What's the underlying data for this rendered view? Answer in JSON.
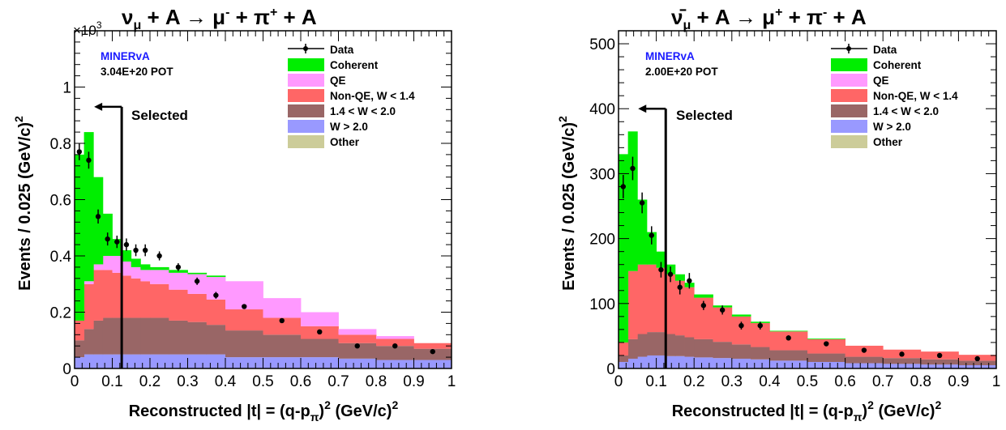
{
  "chart_data": [
    {
      "type": "bar",
      "title_prefix": "ν",
      "title_sub": "μ",
      "title_rest": " + A → μ",
      "title_mu_sup": "-",
      "title_pi": " + π",
      "title_pi_sup": "+",
      "title_end": " + A",
      "exponent_label": "×10",
      "exponent_sup": "3",
      "experiment": "MINERvA",
      "pot": "3.04E+20 POT",
      "ylabel": "Events / 0.025 (GeV/c)",
      "ylabel_sup": "2",
      "xlabel": "Reconstructed |t| = (q-p",
      "xlabel_sub": "π",
      "xlabel_end": ")",
      "xlabel_sup": "2",
      "xlabel_units": " (GeV/c)",
      "xlabel_units_sup": "2",
      "xlim": [
        0,
        1
      ],
      "ylim": [
        0,
        1.2
      ],
      "yticks": [
        "0",
        "0.2",
        "0.4",
        "0.6",
        "0.8",
        "1"
      ],
      "ytick_values": [
        0,
        0.2,
        0.4,
        0.6,
        0.8,
        1.0
      ],
      "xticks": [
        "0",
        "0.1",
        "0.2",
        "0.3",
        "0.4",
        "0.5",
        "0.6",
        "0.7",
        "0.8",
        "0.9",
        "1"
      ],
      "xtick_values": [
        0,
        0.1,
        0.2,
        0.3,
        0.4,
        0.5,
        0.6,
        0.7,
        0.8,
        0.9,
        1.0
      ],
      "cut_value": 0.125,
      "cut_label": "Selected",
      "bin_edges": [
        0,
        0.025,
        0.05,
        0.075,
        0.1,
        0.125,
        0.15,
        0.175,
        0.2,
        0.25,
        0.3,
        0.35,
        0.4,
        0.5,
        0.6,
        0.7,
        0.8,
        0.9,
        1.0
      ],
      "stack_order": [
        "W > 2.0",
        "1.4 < W < 2.0",
        "Non-QE, W < 1.4",
        "QE",
        "Coherent"
      ],
      "series": [
        {
          "name": "W > 2.0",
          "color": "#9999ff",
          "values": [
            0.04,
            0.05,
            0.05,
            0.05,
            0.05,
            0.05,
            0.05,
            0.05,
            0.05,
            0.05,
            0.05,
            0.05,
            0.04,
            0.04,
            0.04,
            0.035,
            0.03,
            0.03
          ]
        },
        {
          "name": "1.4 < W < 2.0",
          "color": "#996666",
          "values": [
            0.06,
            0.09,
            0.12,
            0.13,
            0.13,
            0.13,
            0.13,
            0.13,
            0.13,
            0.12,
            0.115,
            0.105,
            0.095,
            0.08,
            0.065,
            0.055,
            0.05,
            0.04
          ]
        },
        {
          "name": "Non-QE, W < 1.4",
          "color": "#ff6666",
          "values": [
            0.07,
            0.16,
            0.18,
            0.17,
            0.16,
            0.15,
            0.14,
            0.13,
            0.12,
            0.11,
            0.1,
            0.09,
            0.075,
            0.06,
            0.045,
            0.03,
            0.025,
            0.02
          ]
        },
        {
          "name": "QE",
          "color": "#ff99ff",
          "values": [
            0.0,
            0.01,
            0.02,
            0.05,
            0.06,
            0.05,
            0.04,
            0.04,
            0.05,
            0.06,
            0.07,
            0.08,
            0.1,
            0.07,
            0.05,
            0.02,
            0.01,
            0.0
          ]
        },
        {
          "name": "Coherent",
          "color": "#00ee00",
          "values": [
            0.59,
            0.53,
            0.31,
            0.15,
            0.06,
            0.04,
            0.03,
            0.02,
            0.01,
            0.01,
            0.005,
            0.005,
            0.0,
            0.0,
            0.0,
            0.0,
            0.0,
            0.0
          ]
        },
        {
          "name": "Other",
          "color": "#cccc99",
          "values": [
            0,
            0,
            0,
            0,
            0,
            0,
            0,
            0,
            0,
            0,
            0,
            0,
            0,
            0,
            0,
            0,
            0,
            0
          ]
        }
      ],
      "data": {
        "name": "Data",
        "x": [
          0.0125,
          0.0375,
          0.0625,
          0.0875,
          0.1125,
          0.1375,
          0.1625,
          0.1875,
          0.225,
          0.275,
          0.325,
          0.375,
          0.45,
          0.55,
          0.65,
          0.75,
          0.85,
          0.95
        ],
        "y": [
          0.77,
          0.74,
          0.54,
          0.46,
          0.45,
          0.44,
          0.42,
          0.42,
          0.4,
          0.36,
          0.31,
          0.26,
          0.22,
          0.17,
          0.13,
          0.08,
          0.08,
          0.06
        ],
        "err": [
          0.03,
          0.03,
          0.025,
          0.023,
          0.022,
          0.022,
          0.021,
          0.021,
          0.016,
          0.014,
          0.013,
          0.012,
          0.008,
          0.007,
          0.006,
          0.005,
          0.005,
          0.004
        ]
      },
      "legend": [
        "Data",
        "Coherent",
        "QE",
        "Non-QE, W < 1.4",
        "1.4 < W < 2.0",
        "W > 2.0",
        "Other"
      ]
    },
    {
      "type": "bar",
      "title_prefix": "ν̄",
      "title_sub": "μ",
      "title_rest": " + A → μ",
      "title_mu_sup": "+",
      "title_pi": " + π",
      "title_pi_sup": "-",
      "title_end": " + A",
      "experiment": "MINERvA",
      "pot": "2.00E+20 POT",
      "ylabel": "Events / 0.025 (GeV/c)",
      "ylabel_sup": "2",
      "xlabel": "Reconstructed |t| = (q-p",
      "xlabel_sub": "π",
      "xlabel_end": ")",
      "xlabel_sup": "2",
      "xlabel_units": " (GeV/c)",
      "xlabel_units_sup": "2",
      "xlim": [
        0,
        1
      ],
      "ylim": [
        0,
        520
      ],
      "yticks": [
        "0",
        "100",
        "200",
        "300",
        "400",
        "500"
      ],
      "ytick_values": [
        0,
        100,
        200,
        300,
        400,
        500
      ],
      "xticks": [
        "0",
        "0.1",
        "0.2",
        "0.3",
        "0.4",
        "0.5",
        "0.6",
        "0.7",
        "0.8",
        "0.9",
        "1"
      ],
      "xtick_values": [
        0,
        0.1,
        0.2,
        0.3,
        0.4,
        0.5,
        0.6,
        0.7,
        0.8,
        0.9,
        1.0
      ],
      "cut_value": 0.125,
      "cut_label": "Selected",
      "bin_edges": [
        0,
        0.025,
        0.05,
        0.075,
        0.1,
        0.125,
        0.15,
        0.175,
        0.2,
        0.25,
        0.3,
        0.35,
        0.4,
        0.5,
        0.6,
        0.7,
        0.8,
        0.9,
        1.0
      ],
      "stack_order": [
        "W > 2.0",
        "1.4 < W < 2.0",
        "Non-QE, W < 1.4",
        "QE",
        "Coherent"
      ],
      "series": [
        {
          "name": "W > 2.0",
          "color": "#9999ff",
          "values": [
            10,
            15,
            18,
            20,
            20,
            19,
            19,
            18,
            17,
            16,
            15,
            14,
            12,
            10,
            8,
            7,
            6,
            5
          ]
        },
        {
          "name": "1.4 < W < 2.0",
          "color": "#996666",
          "values": [
            10,
            30,
            35,
            36,
            36,
            34,
            32,
            30,
            28,
            25,
            22,
            19,
            16,
            13,
            10,
            9,
            8,
            7
          ]
        },
        {
          "name": "Non-QE, W < 1.4",
          "color": "#ff6666",
          "values": [
            20,
            105,
            107,
            104,
            99,
            92,
            84,
            77,
            64,
            53,
            43,
            37,
            29,
            22,
            17,
            13,
            12,
            9
          ]
        },
        {
          "name": "QE",
          "color": "#ff99ff",
          "values": [
            0,
            0,
            0,
            0,
            0,
            0,
            0,
            0,
            0,
            0,
            0,
            0,
            0,
            0,
            0,
            0,
            0,
            0
          ]
        },
        {
          "name": "Coherent",
          "color": "#00ee00",
          "values": [
            290,
            215,
            100,
            50,
            25,
            15,
            10,
            7,
            5,
            3,
            3,
            2,
            1,
            1,
            0,
            0,
            0,
            0
          ]
        },
        {
          "name": "Other",
          "color": "#cccc99",
          "values": [
            0,
            0,
            0,
            0,
            0,
            0,
            0,
            0,
            0,
            0,
            0,
            0,
            0,
            0,
            0,
            0,
            0,
            0
          ]
        }
      ],
      "data": {
        "name": "Data",
        "x": [
          0.0125,
          0.0375,
          0.0625,
          0.0875,
          0.1125,
          0.1375,
          0.1625,
          0.1875,
          0.225,
          0.275,
          0.325,
          0.375,
          0.45,
          0.55,
          0.65,
          0.75,
          0.85,
          0.95
        ],
        "y": [
          280,
          308,
          255,
          205,
          152,
          145,
          125,
          135,
          97,
          90,
          66,
          66,
          47,
          38,
          28,
          22,
          20,
          15
        ],
        "err": [
          18,
          18,
          16,
          14,
          12,
          12,
          11,
          12,
          7,
          7,
          6,
          6,
          4,
          3,
          3,
          2,
          2,
          2
        ]
      },
      "legend": [
        "Data",
        "Coherent",
        "QE",
        "Non-QE, W < 1.4",
        "1.4 < W < 2.0",
        "W > 2.0",
        "Other"
      ]
    }
  ]
}
